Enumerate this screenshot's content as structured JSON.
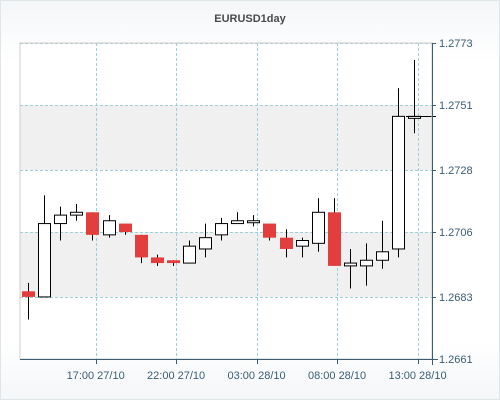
{
  "chart_data": {
    "type": "candlestick",
    "title": "EURUSD1day",
    "xlabel": "",
    "ylabel": "",
    "ylim": [
      1.2661,
      1.2773
    ],
    "y_ticks": [
      "1.2773",
      "1.2751",
      "1.2728",
      "1.2706",
      "1.2683",
      "1.2661"
    ],
    "y_tick_values": [
      1.2773,
      1.2751,
      1.2728,
      1.2706,
      1.2683,
      1.2661
    ],
    "x_ticks": [
      "17:00 27/10",
      "22:00 27/10",
      "03:00 28/10",
      "08:00 28/10",
      "13:00 28/10"
    ],
    "x_tick_bar_positions": [
      4.2,
      9.2,
      14.2,
      19.2,
      24.2
    ],
    "last_price": 1.2747,
    "grid": true,
    "legend": "none",
    "colors": {
      "up": "#ffffff",
      "down": "#e33e3e",
      "outline": "#000000",
      "grid": "#9ecfd6",
      "axis": "#3a5d72",
      "band": "#f0f0f0"
    },
    "candles": [
      {
        "open": 1.2685,
        "high": 1.2688,
        "low": 1.2675,
        "close": 1.2683
      },
      {
        "open": 1.2683,
        "high": 1.2719,
        "low": 1.2683,
        "close": 1.2709
      },
      {
        "open": 1.2709,
        "high": 1.2715,
        "low": 1.2703,
        "close": 1.2712
      },
      {
        "open": 1.2712,
        "high": 1.2716,
        "low": 1.271,
        "close": 1.2713
      },
      {
        "open": 1.2713,
        "high": 1.2713,
        "low": 1.2703,
        "close": 1.2705
      },
      {
        "open": 1.2705,
        "high": 1.2712,
        "low": 1.2704,
        "close": 1.271
      },
      {
        "open": 1.2709,
        "high": 1.2709,
        "low": 1.2705,
        "close": 1.2706
      },
      {
        "open": 1.2705,
        "high": 1.2705,
        "low": 1.2695,
        "close": 1.2697
      },
      {
        "open": 1.2697,
        "high": 1.2698,
        "low": 1.2694,
        "close": 1.2695
      },
      {
        "open": 1.2696,
        "high": 1.2696,
        "low": 1.2694,
        "close": 1.2695
      },
      {
        "open": 1.2695,
        "high": 1.2703,
        "low": 1.2695,
        "close": 1.2701
      },
      {
        "open": 1.27,
        "high": 1.2709,
        "low": 1.2697,
        "close": 1.2704
      },
      {
        "open": 1.2705,
        "high": 1.2711,
        "low": 1.2703,
        "close": 1.2709
      },
      {
        "open": 1.2709,
        "high": 1.2713,
        "low": 1.2709,
        "close": 1.271
      },
      {
        "open": 1.271,
        "high": 1.2712,
        "low": 1.2708,
        "close": 1.271
      },
      {
        "open": 1.2709,
        "high": 1.2709,
        "low": 1.2703,
        "close": 1.2704
      },
      {
        "open": 1.2704,
        "high": 1.2707,
        "low": 1.2697,
        "close": 1.27
      },
      {
        "open": 1.2701,
        "high": 1.2704,
        "low": 1.2697,
        "close": 1.2703
      },
      {
        "open": 1.2702,
        "high": 1.2718,
        "low": 1.2699,
        "close": 1.2713
      },
      {
        "open": 1.2713,
        "high": 1.2718,
        "low": 1.2694,
        "close": 1.2694
      },
      {
        "open": 1.2694,
        "high": 1.27,
        "low": 1.2686,
        "close": 1.2695
      },
      {
        "open": 1.2694,
        "high": 1.2702,
        "low": 1.2687,
        "close": 1.2696
      },
      {
        "open": 1.2696,
        "high": 1.271,
        "low": 1.2693,
        "close": 1.2699
      },
      {
        "open": 1.27,
        "high": 1.2757,
        "low": 1.2697,
        "close": 1.2747
      },
      {
        "open": 1.2747,
        "high": 1.2767,
        "low": 1.2741,
        "close": 1.2747
      }
    ]
  }
}
